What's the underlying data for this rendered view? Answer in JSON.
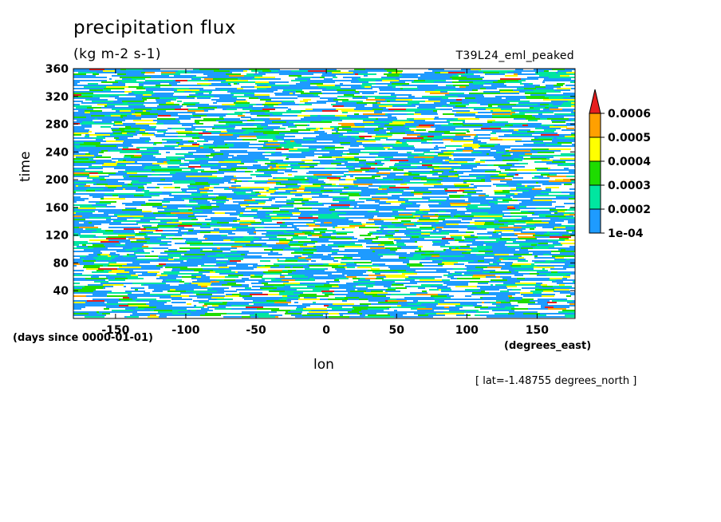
{
  "chart_data": {
    "type": "heatmap",
    "title": "precipitation flux",
    "units": "(kg m-2 s-1)",
    "dataset": "T39L24_eml_peaked",
    "xlabel": "lon",
    "ylabel": "time",
    "x_units": "(degrees_east)",
    "y_units": "(days since 0000-01-01)",
    "slice_note": "[ lat=-1.48755 degrees_north ]",
    "xlim": [
      -180,
      177
    ],
    "ylim": [
      0,
      360
    ],
    "x_ticks": [
      -150,
      -100,
      -50,
      0,
      50,
      100,
      150
    ],
    "x_tick_labels": [
      "-150",
      "-100",
      "-50",
      "0",
      "50",
      "100",
      "150"
    ],
    "y_ticks": [
      40,
      80,
      120,
      160,
      200,
      240,
      280,
      320,
      360
    ],
    "y_tick_labels": [
      "40",
      "80",
      "120",
      "160",
      "200",
      "240",
      "280",
      "320",
      "360"
    ],
    "colorbar": {
      "levels": [
        0.0001,
        0.0002,
        0.0003,
        0.0004,
        0.0005,
        0.0006
      ],
      "labels": [
        "1e-04",
        "0.0002",
        "0.0003",
        "0.0004",
        "0.0005",
        "0.0006"
      ],
      "colors": [
        "#1e9bff",
        "#00e6a0",
        "#1edc00",
        "#ffff00",
        "#ffa000",
        "#e61e1e"
      ],
      "extend": "max"
    }
  }
}
